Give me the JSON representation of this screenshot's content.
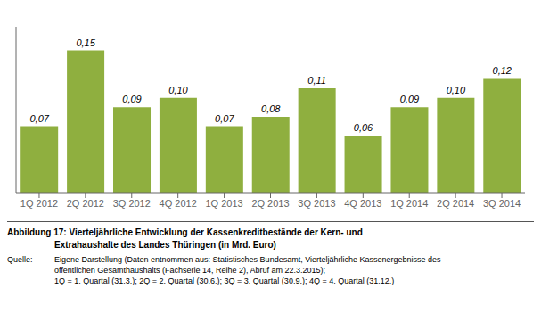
{
  "chart_data": {
    "type": "bar",
    "title": "Abbildung 17: Vierteljährliche Entwicklung der Kassenkreditbestände der Kern- und\nExtrahaushalte des Landes Thüringen (in Mrd. Euro)",
    "annotations": [
      "Quelle:",
      "Eigene Darstellung (Daten entnommen aus: Statistisches Bundesamt, Vierteljährliche Kassenergebnisse des\nöffentlichen Gesamthaushalts (Fachserie 14, Reihe 2), Abruf am 22.3.2015);\n1Q = 1. Quartal (31.3.); 2Q = 2. Quartal (30.6.); 3Q = 3. Quartal (30.9.); 4Q = 4. Quartal (31.12.)"
    ],
    "categories": [
      "1Q 2012",
      "2Q 2012",
      "3Q 2012",
      "4Q 2012",
      "1Q 2013",
      "2Q 2013",
      "3Q 2013",
      "4Q 2013",
      "1Q 2014",
      "2Q 2014",
      "3Q 2014"
    ],
    "values": [
      0.07,
      0.15,
      0.09,
      0.1,
      0.07,
      0.08,
      0.11,
      0.06,
      0.09,
      0.1,
      0.12
    ],
    "value_labels": [
      "0,07",
      "0,15",
      "0,09",
      "0,10",
      "0,07",
      "0,08",
      "0,11",
      "0,06",
      "0,09",
      "0,10",
      "0,12"
    ],
    "color": "#8faf3f",
    "ylim": [
      0,
      0.175
    ],
    "data_labels": true,
    "tick_labels": "x",
    "grid": false
  }
}
